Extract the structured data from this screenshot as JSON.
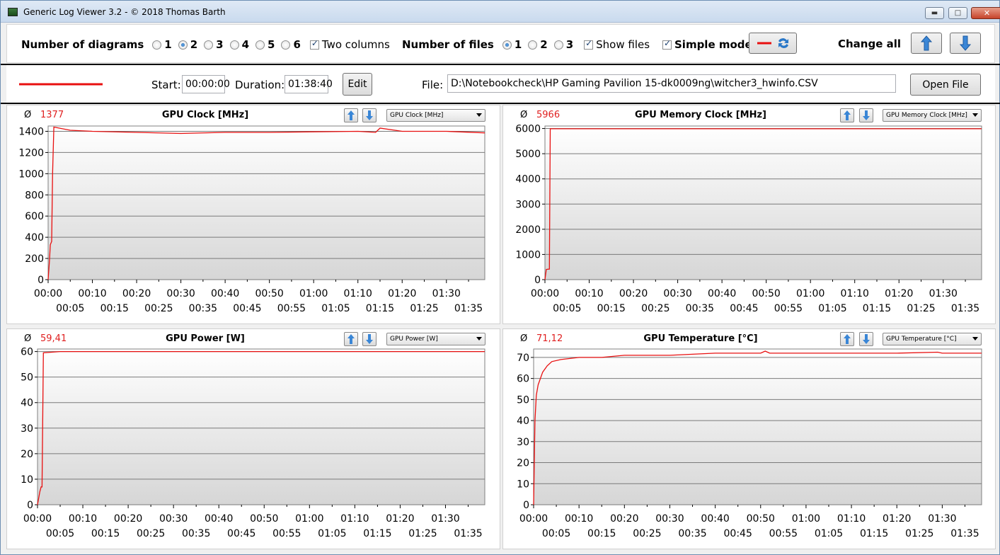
{
  "window": {
    "title": "Generic Log Viewer 3.2 - © 2018 Thomas Barth",
    "minimize_icon": "minimize-icon",
    "maximize_icon": "maximize-icon",
    "close_icon": "close-icon"
  },
  "toolbar": {
    "num_diagrams_label": "Number of diagrams",
    "diagram_options": [
      "1",
      "2",
      "3",
      "4",
      "5",
      "6"
    ],
    "diagram_selected": "2",
    "two_columns_label": "Two columns",
    "two_columns_checked": true,
    "num_files_label": "Number of files",
    "file_options": [
      "1",
      "2",
      "3"
    ],
    "file_selected": "1",
    "show_files_label": "Show files",
    "show_files_checked": true,
    "simple_mode_label": "Simple mode",
    "simple_mode_checked": true,
    "change_all_label": "Change all",
    "up_icon": "arrow-up-icon",
    "down_icon": "arrow-down-icon",
    "refresh_icon": "refresh-icon"
  },
  "filebar": {
    "line_color": "#e81010",
    "start_label": "Start:",
    "start_value": "00:00:00",
    "duration_label": "Duration:",
    "duration_value": "01:38:40",
    "edit_label": "Edit",
    "file_label": "File:",
    "file_path": "D:\\Notebookcheck\\HP Gaming Pavilion 15-dk0009ng\\witcher3_hwinfo.CSV",
    "open_file_label": "Open File"
  },
  "x_ticks_top": [
    "00:00",
    "00:10",
    "00:20",
    "00:30",
    "00:40",
    "00:50",
    "01:00",
    "01:10",
    "01:20",
    "01:30"
  ],
  "x_ticks_bottom": [
    "00:05",
    "00:15",
    "00:25",
    "00:35",
    "00:45",
    "00:55",
    "01:05",
    "01:15",
    "01:25",
    "01:35"
  ],
  "panels": [
    {
      "avg_symbol": "Ø",
      "avg": "1377",
      "title": "GPU Clock [MHz]",
      "combo": "GPU Clock [MHz]"
    },
    {
      "avg_symbol": "Ø",
      "avg": "5966",
      "title": "GPU Memory Clock [MHz]",
      "combo": "GPU Memory Clock [MHz]"
    },
    {
      "avg_symbol": "Ø",
      "avg": "59,41",
      "title": "GPU Power [W]",
      "combo": "GPU Power [W]"
    },
    {
      "avg_symbol": "Ø",
      "avg": "71,12",
      "title": "GPU Temperature [°C]",
      "combo": "GPU Temperature [°C]"
    }
  ],
  "chart_data": [
    {
      "type": "line",
      "title": "GPU Clock [MHz]",
      "ylim": [
        0,
        1450
      ],
      "yticks": [
        0,
        200,
        400,
        600,
        800,
        1000,
        1200,
        1400
      ],
      "xlim_minutes": [
        0,
        98.67
      ],
      "series": [
        {
          "x": [
            0,
            0.3,
            0.5,
            0.8,
            1,
            1.3,
            5,
            10,
            20,
            30,
            40,
            50,
            60,
            70,
            74,
            75,
            80,
            90,
            98.67
          ],
          "values": [
            0,
            180,
            330,
            360,
            1000,
            1440,
            1410,
            1400,
            1390,
            1380,
            1390,
            1390,
            1395,
            1400,
            1390,
            1430,
            1400,
            1400,
            1385
          ]
        }
      ],
      "color": "#e81010"
    },
    {
      "type": "line",
      "title": "GPU Memory Clock [MHz]",
      "ylim": [
        0,
        6100
      ],
      "yticks": [
        0,
        1000,
        2000,
        3000,
        4000,
        5000,
        6000
      ],
      "xlim_minutes": [
        0,
        98.67
      ],
      "series": [
        {
          "x": [
            0,
            0.3,
            0.5,
            1,
            1.2,
            98.67
          ],
          "values": [
            0,
            400,
            410,
            420,
            5990,
            5990
          ]
        }
      ],
      "color": "#e81010"
    },
    {
      "type": "line",
      "title": "GPU Power [W]",
      "ylim": [
        0,
        61
      ],
      "yticks": [
        0,
        10,
        20,
        30,
        40,
        50,
        60
      ],
      "xlim_minutes": [
        0,
        98.67
      ],
      "series": [
        {
          "x": [
            0,
            0.5,
            0.8,
            1,
            1.3,
            5,
            20,
            40,
            60,
            80,
            98.67
          ],
          "values": [
            0,
            5,
            7,
            7,
            59.5,
            60,
            60,
            60,
            60,
            60,
            60
          ]
        }
      ],
      "color": "#e81010"
    },
    {
      "type": "line",
      "title": "GPU Temperature [°C]",
      "ylim": [
        0,
        74
      ],
      "yticks": [
        0,
        10,
        20,
        30,
        40,
        50,
        60,
        70
      ],
      "xlim_minutes": [
        0,
        98.67
      ],
      "series": [
        {
          "x": [
            0,
            0.3,
            0.6,
            1,
            2,
            3,
            4,
            6,
            10,
            15,
            20,
            30,
            40,
            50,
            51,
            52,
            60,
            80,
            89,
            90,
            98.67
          ],
          "values": [
            0,
            40,
            52,
            57,
            63,
            66,
            68,
            69,
            70,
            70,
            71,
            71,
            72,
            72,
            73,
            72,
            72,
            72,
            72.5,
            72,
            72
          ]
        }
      ],
      "color": "#e81010"
    }
  ]
}
